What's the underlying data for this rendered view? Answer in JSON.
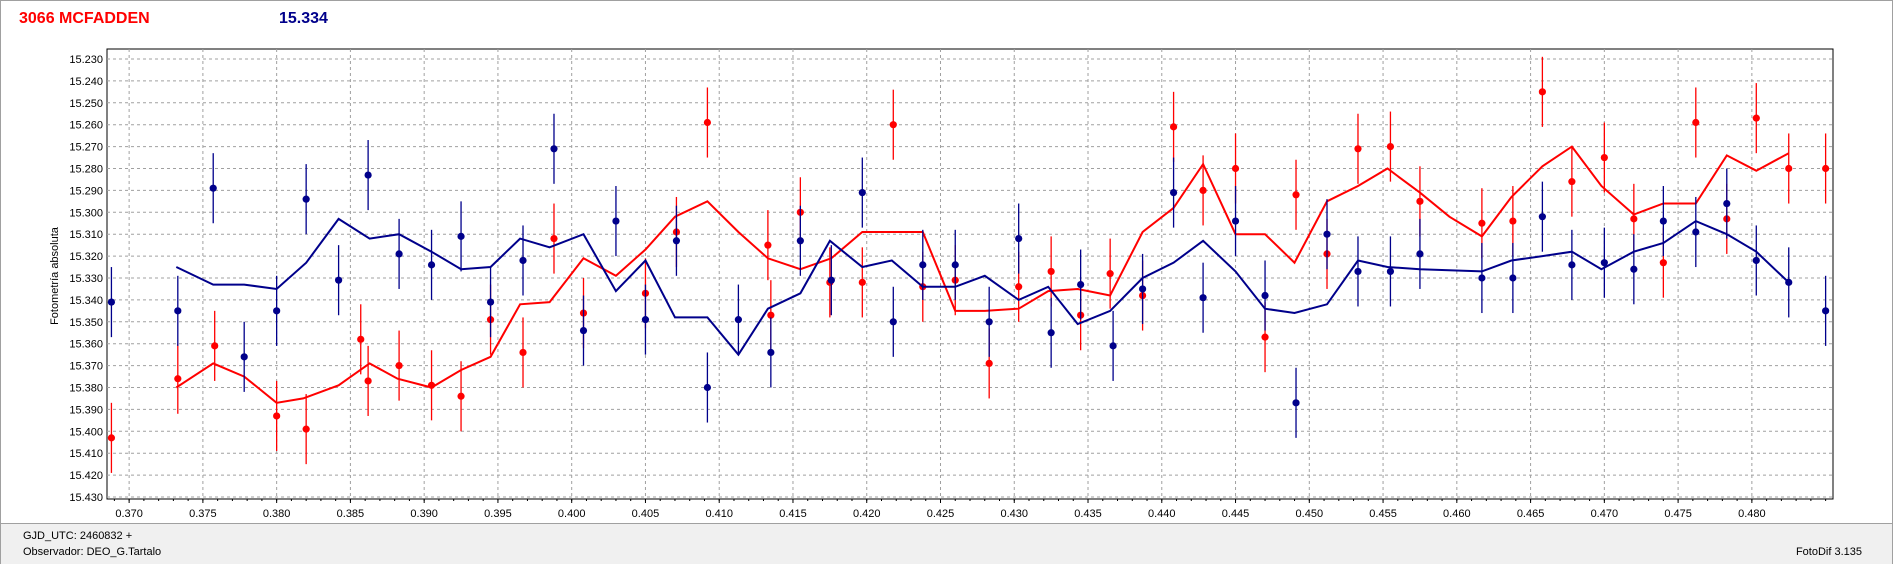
{
  "header": {
    "star_name": "3066 MCFADDEN",
    "magnitude": "15.334"
  },
  "footer": {
    "gjd_label": "GJD_UTC: 2460832 +",
    "observer_label": "Observador: DEO_G.Tartalo",
    "version_label": "FotoDif 3.135"
  },
  "colors": {
    "red_series": "#ff0000",
    "blue_series": "#00008b",
    "grid": "#a0a0a0"
  },
  "chart_data": {
    "type": "scatter",
    "title": "",
    "xlabel": "",
    "ylabel": "Fotometría absoluta",
    "xlim": [
      0.3685,
      0.4855
    ],
    "ylim": [
      15.23,
      15.43
    ],
    "y_inverted": true,
    "grid": true,
    "x_ticks": [
      "0.370",
      "0.375",
      "0.380",
      "0.385",
      "0.390",
      "0.395",
      "0.400",
      "0.405",
      "0.410",
      "0.415",
      "0.420",
      "0.425",
      "0.430",
      "0.435",
      "0.440",
      "0.445",
      "0.450",
      "0.455",
      "0.460",
      "0.465",
      "0.470",
      "0.475",
      "0.480"
    ],
    "y_ticks": [
      "15.230",
      "15.240",
      "15.250",
      "15.260",
      "15.270",
      "15.280",
      "15.290",
      "15.300",
      "15.310",
      "15.320",
      "15.330",
      "15.340",
      "15.350",
      "15.360",
      "15.370",
      "15.380",
      "15.390",
      "15.400",
      "15.410",
      "15.420",
      "15.430"
    ],
    "series": [
      {
        "color": "#ff0000",
        "points": [
          {
            "x": 0.3688,
            "y": 15.403,
            "err": 0.016
          },
          {
            "x": 0.3733,
            "y": 15.376,
            "err": 0.016
          },
          {
            "x": 0.3758,
            "y": 15.361,
            "err": 0.016
          },
          {
            "x": 0.38,
            "y": 15.393,
            "err": 0.016
          },
          {
            "x": 0.382,
            "y": 15.399,
            "err": 0.016
          },
          {
            "x": 0.3857,
            "y": 15.358,
            "err": 0.016
          },
          {
            "x": 0.3862,
            "y": 15.377,
            "err": 0.016
          },
          {
            "x": 0.3883,
            "y": 15.37,
            "err": 0.016
          },
          {
            "x": 0.3905,
            "y": 15.379,
            "err": 0.016
          },
          {
            "x": 0.3925,
            "y": 15.384,
            "err": 0.016
          },
          {
            "x": 0.3945,
            "y": 15.349,
            "err": 0.016
          },
          {
            "x": 0.3967,
            "y": 15.364,
            "err": 0.016
          },
          {
            "x": 0.3988,
            "y": 15.312,
            "err": 0.016
          },
          {
            "x": 0.4008,
            "y": 15.346,
            "err": 0.016
          },
          {
            "x": 0.405,
            "y": 15.337,
            "err": 0.016
          },
          {
            "x": 0.4071,
            "y": 15.309,
            "err": 0.016
          },
          {
            "x": 0.4092,
            "y": 15.259,
            "err": 0.016
          },
          {
            "x": 0.4133,
            "y": 15.315,
            "err": 0.016
          },
          {
            "x": 0.4135,
            "y": 15.347,
            "err": 0.016
          },
          {
            "x": 0.4155,
            "y": 15.3,
            "err": 0.016
          },
          {
            "x": 0.4175,
            "y": 15.332,
            "err": 0.016
          },
          {
            "x": 0.4197,
            "y": 15.332,
            "err": 0.016
          },
          {
            "x": 0.4218,
            "y": 15.26,
            "err": 0.016
          },
          {
            "x": 0.4238,
            "y": 15.334,
            "err": 0.016
          },
          {
            "x": 0.426,
            "y": 15.331,
            "err": 0.016
          },
          {
            "x": 0.4283,
            "y": 15.369,
            "err": 0.016
          },
          {
            "x": 0.4303,
            "y": 15.334,
            "err": 0.016
          },
          {
            "x": 0.4325,
            "y": 15.327,
            "err": 0.016
          },
          {
            "x": 0.4345,
            "y": 15.347,
            "err": 0.016
          },
          {
            "x": 0.4365,
            "y": 15.328,
            "err": 0.016
          },
          {
            "x": 0.4387,
            "y": 15.338,
            "err": 0.016
          },
          {
            "x": 0.4408,
            "y": 15.261,
            "err": 0.016
          },
          {
            "x": 0.4428,
            "y": 15.29,
            "err": 0.016
          },
          {
            "x": 0.445,
            "y": 15.28,
            "err": 0.016
          },
          {
            "x": 0.447,
            "y": 15.357,
            "err": 0.016
          },
          {
            "x": 0.4491,
            "y": 15.292,
            "err": 0.016
          },
          {
            "x": 0.4512,
            "y": 15.319,
            "err": 0.016
          },
          {
            "x": 0.4533,
            "y": 15.271,
            "err": 0.016
          },
          {
            "x": 0.4555,
            "y": 15.27,
            "err": 0.016
          },
          {
            "x": 0.4575,
            "y": 15.295,
            "err": 0.016
          },
          {
            "x": 0.4617,
            "y": 15.305,
            "err": 0.016
          },
          {
            "x": 0.4638,
            "y": 15.304,
            "err": 0.016
          },
          {
            "x": 0.4658,
            "y": 15.245,
            "err": 0.016
          },
          {
            "x": 0.4678,
            "y": 15.286,
            "err": 0.016
          },
          {
            "x": 0.47,
            "y": 15.275,
            "err": 0.016
          },
          {
            "x": 0.472,
            "y": 15.303,
            "err": 0.016
          },
          {
            "x": 0.474,
            "y": 15.323,
            "err": 0.016
          },
          {
            "x": 0.4762,
            "y": 15.259,
            "err": 0.016
          },
          {
            "x": 0.4783,
            "y": 15.303,
            "err": 0.016
          },
          {
            "x": 0.4803,
            "y": 15.257,
            "err": 0.016
          },
          {
            "x": 0.4825,
            "y": 15.28,
            "err": 0.016
          },
          {
            "x": 0.485,
            "y": 15.28,
            "err": 0.016
          }
        ],
        "trend": [
          [
            0.3732,
            15.38
          ],
          [
            0.3757,
            15.369
          ],
          [
            0.3778,
            15.375
          ],
          [
            0.38,
            15.387
          ],
          [
            0.3818,
            15.385
          ],
          [
            0.3842,
            15.379
          ],
          [
            0.3863,
            15.369
          ],
          [
            0.3882,
            15.376
          ],
          [
            0.3905,
            15.38
          ],
          [
            0.3925,
            15.372
          ],
          [
            0.3945,
            15.366
          ],
          [
            0.3965,
            15.342
          ],
          [
            0.3985,
            15.341
          ],
          [
            0.4008,
            15.321
          ],
          [
            0.403,
            15.329
          ],
          [
            0.405,
            15.317
          ],
          [
            0.407,
            15.302
          ],
          [
            0.4092,
            15.295
          ],
          [
            0.4113,
            15.309
          ],
          [
            0.4133,
            15.321
          ],
          [
            0.4155,
            15.326
          ],
          [
            0.4176,
            15.321
          ],
          [
            0.4197,
            15.309
          ],
          [
            0.4217,
            15.309
          ],
          [
            0.4238,
            15.309
          ],
          [
            0.426,
            15.345
          ],
          [
            0.428,
            15.345
          ],
          [
            0.4303,
            15.344
          ],
          [
            0.4323,
            15.336
          ],
          [
            0.4343,
            15.335
          ],
          [
            0.4365,
            15.338
          ],
          [
            0.4387,
            15.309
          ],
          [
            0.4408,
            15.298
          ],
          [
            0.4428,
            15.278
          ],
          [
            0.445,
            15.31
          ],
          [
            0.447,
            15.31
          ],
          [
            0.449,
            15.323
          ],
          [
            0.4512,
            15.295
          ],
          [
            0.4533,
            15.288
          ],
          [
            0.4553,
            15.28
          ],
          [
            0.4575,
            15.291
          ],
          [
            0.4595,
            15.302
          ],
          [
            0.4617,
            15.311
          ],
          [
            0.4637,
            15.293
          ],
          [
            0.4658,
            15.279
          ],
          [
            0.4678,
            15.27
          ],
          [
            0.4698,
            15.288
          ],
          [
            0.472,
            15.301
          ],
          [
            0.474,
            15.296
          ],
          [
            0.4762,
            15.296
          ],
          [
            0.4783,
            15.274
          ],
          [
            0.4803,
            15.281
          ],
          [
            0.4825,
            15.273
          ]
        ]
      },
      {
        "color": "#00008b",
        "points": [
          {
            "x": 0.3688,
            "y": 15.341,
            "err": 0.016
          },
          {
            "x": 0.3733,
            "y": 15.345,
            "err": 0.016
          },
          {
            "x": 0.3757,
            "y": 15.289,
            "err": 0.016
          },
          {
            "x": 0.3778,
            "y": 15.366,
            "err": 0.016
          },
          {
            "x": 0.38,
            "y": 15.345,
            "err": 0.016
          },
          {
            "x": 0.382,
            "y": 15.294,
            "err": 0.016
          },
          {
            "x": 0.3842,
            "y": 15.331,
            "err": 0.016
          },
          {
            "x": 0.3862,
            "y": 15.283,
            "err": 0.016
          },
          {
            "x": 0.3883,
            "y": 15.319,
            "err": 0.016
          },
          {
            "x": 0.3905,
            "y": 15.324,
            "err": 0.016
          },
          {
            "x": 0.3925,
            "y": 15.311,
            "err": 0.016
          },
          {
            "x": 0.3945,
            "y": 15.341,
            "err": 0.016
          },
          {
            "x": 0.3967,
            "y": 15.322,
            "err": 0.016
          },
          {
            "x": 0.3988,
            "y": 15.271,
            "err": 0.016
          },
          {
            "x": 0.4008,
            "y": 15.354,
            "err": 0.016
          },
          {
            "x": 0.403,
            "y": 15.304,
            "err": 0.016
          },
          {
            "x": 0.405,
            "y": 15.349,
            "err": 0.016
          },
          {
            "x": 0.4071,
            "y": 15.313,
            "err": 0.016
          },
          {
            "x": 0.4092,
            "y": 15.38,
            "err": 0.016
          },
          {
            "x": 0.4113,
            "y": 15.349,
            "err": 0.016
          },
          {
            "x": 0.4135,
            "y": 15.364,
            "err": 0.016
          },
          {
            "x": 0.4155,
            "y": 15.313,
            "err": 0.016
          },
          {
            "x": 0.4176,
            "y": 15.331,
            "err": 0.016
          },
          {
            "x": 0.4197,
            "y": 15.291,
            "err": 0.016
          },
          {
            "x": 0.4218,
            "y": 15.35,
            "err": 0.016
          },
          {
            "x": 0.4238,
            "y": 15.324,
            "err": 0.016
          },
          {
            "x": 0.426,
            "y": 15.324,
            "err": 0.016
          },
          {
            "x": 0.4283,
            "y": 15.35,
            "err": 0.016
          },
          {
            "x": 0.4303,
            "y": 15.312,
            "err": 0.016
          },
          {
            "x": 0.4325,
            "y": 15.355,
            "err": 0.016
          },
          {
            "x": 0.4345,
            "y": 15.333,
            "err": 0.016
          },
          {
            "x": 0.4367,
            "y": 15.361,
            "err": 0.016
          },
          {
            "x": 0.4387,
            "y": 15.335,
            "err": 0.016
          },
          {
            "x": 0.4408,
            "y": 15.291,
            "err": 0.016
          },
          {
            "x": 0.4428,
            "y": 15.339,
            "err": 0.016
          },
          {
            "x": 0.445,
            "y": 15.304,
            "err": 0.016
          },
          {
            "x": 0.447,
            "y": 15.338,
            "err": 0.016
          },
          {
            "x": 0.4491,
            "y": 15.387,
            "err": 0.016
          },
          {
            "x": 0.4512,
            "y": 15.31,
            "err": 0.016
          },
          {
            "x": 0.4533,
            "y": 15.327,
            "err": 0.016
          },
          {
            "x": 0.4555,
            "y": 15.327,
            "err": 0.016
          },
          {
            "x": 0.4575,
            "y": 15.319,
            "err": 0.016
          },
          {
            "x": 0.4617,
            "y": 15.33,
            "err": 0.016
          },
          {
            "x": 0.4638,
            "y": 15.33,
            "err": 0.016
          },
          {
            "x": 0.4658,
            "y": 15.302,
            "err": 0.016
          },
          {
            "x": 0.4678,
            "y": 15.324,
            "err": 0.016
          },
          {
            "x": 0.47,
            "y": 15.323,
            "err": 0.016
          },
          {
            "x": 0.472,
            "y": 15.326,
            "err": 0.016
          },
          {
            "x": 0.474,
            "y": 15.304,
            "err": 0.016
          },
          {
            "x": 0.4762,
            "y": 15.309,
            "err": 0.016
          },
          {
            "x": 0.4783,
            "y": 15.296,
            "err": 0.016
          },
          {
            "x": 0.4803,
            "y": 15.322,
            "err": 0.016
          },
          {
            "x": 0.4825,
            "y": 15.332,
            "err": 0.016
          },
          {
            "x": 0.485,
            "y": 15.345,
            "err": 0.016
          }
        ],
        "trend": [
          [
            0.3732,
            15.325
          ],
          [
            0.3757,
            15.333
          ],
          [
            0.3778,
            15.333
          ],
          [
            0.38,
            15.335
          ],
          [
            0.382,
            15.323
          ],
          [
            0.3842,
            15.303
          ],
          [
            0.3863,
            15.312
          ],
          [
            0.3883,
            15.31
          ],
          [
            0.3905,
            15.318
          ],
          [
            0.3925,
            15.326
          ],
          [
            0.3945,
            15.325
          ],
          [
            0.3965,
            15.312
          ],
          [
            0.3985,
            15.316
          ],
          [
            0.4008,
            15.31
          ],
          [
            0.403,
            15.336
          ],
          [
            0.405,
            15.322
          ],
          [
            0.407,
            15.348
          ],
          [
            0.4092,
            15.348
          ],
          [
            0.4113,
            15.365
          ],
          [
            0.4133,
            15.344
          ],
          [
            0.4155,
            15.337
          ],
          [
            0.4175,
            15.313
          ],
          [
            0.4197,
            15.325
          ],
          [
            0.4217,
            15.322
          ],
          [
            0.4238,
            15.334
          ],
          [
            0.426,
            15.334
          ],
          [
            0.428,
            15.329
          ],
          [
            0.4303,
            15.34
          ],
          [
            0.4323,
            15.334
          ],
          [
            0.4343,
            15.351
          ],
          [
            0.4365,
            15.345
          ],
          [
            0.4387,
            15.33
          ],
          [
            0.4408,
            15.323
          ],
          [
            0.4428,
            15.313
          ],
          [
            0.445,
            15.327
          ],
          [
            0.447,
            15.344
          ],
          [
            0.449,
            15.346
          ],
          [
            0.4512,
            15.342
          ],
          [
            0.4533,
            15.322
          ],
          [
            0.4553,
            15.325
          ],
          [
            0.4575,
            15.326
          ],
          [
            0.4617,
            15.327
          ],
          [
            0.4637,
            15.322
          ],
          [
            0.4658,
            15.32
          ],
          [
            0.4678,
            15.318
          ],
          [
            0.4698,
            15.326
          ],
          [
            0.472,
            15.318
          ],
          [
            0.474,
            15.314
          ],
          [
            0.4762,
            15.304
          ],
          [
            0.4783,
            15.31
          ],
          [
            0.4803,
            15.318
          ],
          [
            0.4825,
            15.332
          ]
        ]
      }
    ]
  }
}
